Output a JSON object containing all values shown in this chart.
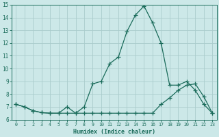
{
  "xlabel": "Humidex (Indice chaleur)",
  "x": [
    0,
    1,
    2,
    3,
    4,
    5,
    6,
    7,
    8,
    9,
    10,
    11,
    12,
    13,
    14,
    15,
    16,
    17,
    18,
    19,
    20,
    21,
    22,
    23
  ],
  "line1": [
    7.2,
    7.0,
    6.7,
    6.55,
    6.5,
    6.5,
    7.0,
    6.5,
    7.0,
    8.8,
    9.0,
    10.4,
    10.9,
    12.9,
    14.2,
    14.9,
    13.6,
    12.0,
    8.7,
    8.7,
    9.0,
    8.3,
    7.2,
    6.5
  ],
  "line2": [
    7.2,
    7.0,
    6.7,
    6.55,
    6.5,
    6.5,
    6.5,
    6.5,
    6.5,
    6.5,
    6.5,
    6.5,
    6.5,
    6.5,
    6.5,
    6.5,
    6.5,
    7.2,
    7.7,
    8.3,
    8.7,
    8.8,
    7.8,
    6.5
  ],
  "line_color": "#1a6b5a",
  "bg_color": "#cce8e8",
  "grid_color": "#aacccc",
  "ylim": [
    6,
    15
  ],
  "xlim": [
    -0.5,
    23.5
  ],
  "yticks": [
    6,
    7,
    8,
    9,
    10,
    11,
    12,
    13,
    14,
    15
  ],
  "xticks": [
    0,
    1,
    2,
    3,
    4,
    5,
    6,
    7,
    8,
    9,
    10,
    11,
    12,
    13,
    14,
    15,
    16,
    17,
    18,
    19,
    20,
    21,
    22,
    23
  ],
  "xtick_labels": [
    "0",
    "1",
    "2",
    "3",
    "4",
    "5",
    "6",
    "7",
    "8",
    "9",
    "10",
    "11",
    "12",
    "13",
    "14",
    "15",
    "16",
    "17",
    "18",
    "19",
    "20",
    "21",
    "22",
    "23"
  ],
  "marker": "+",
  "marker_size": 4,
  "linewidth": 0.9
}
